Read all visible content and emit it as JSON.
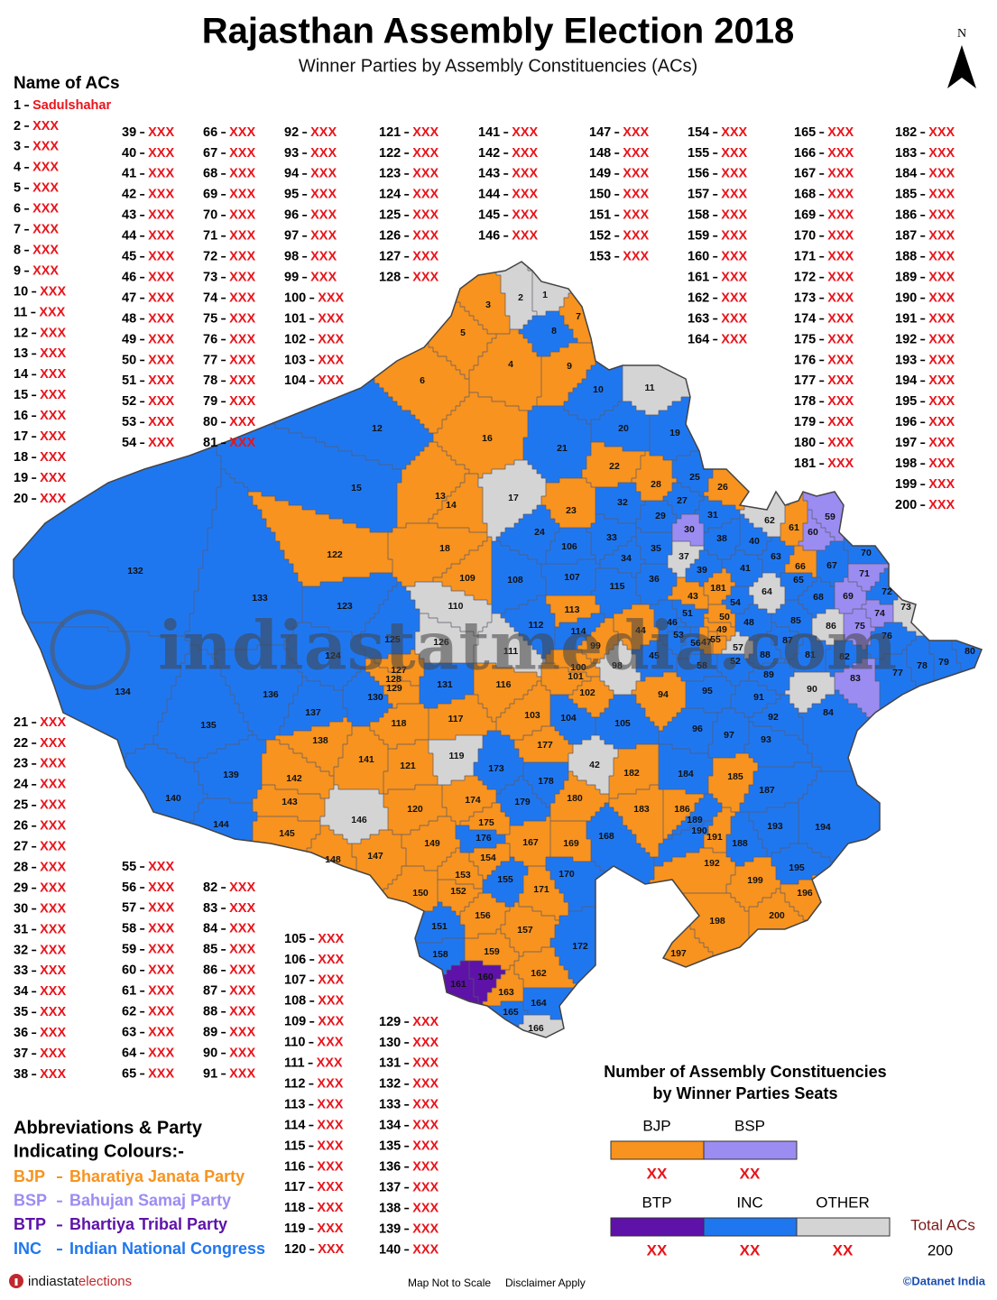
{
  "header": {
    "title": "Rajasthan Assembly Election 2018",
    "subtitle": "Winner Parties by Assembly Constituencies (ACs)",
    "north": "N"
  },
  "ac_list": {
    "heading": "Name of ACs",
    "numbers": [
      1,
      2,
      3,
      4,
      5,
      6,
      7,
      8,
      9,
      10,
      11,
      12,
      13,
      14,
      15,
      16,
      17,
      18,
      19,
      20,
      21,
      22,
      23,
      24,
      25,
      26,
      27,
      28,
      29,
      30,
      31,
      32,
      33,
      34,
      35,
      36,
      37,
      38,
      39,
      40,
      41,
      42,
      43,
      44,
      45,
      46,
      47,
      48,
      49,
      50,
      51,
      52,
      53,
      54,
      55,
      56,
      57,
      58,
      59,
      60,
      61,
      62,
      63,
      64,
      65,
      66,
      67,
      68,
      69,
      70,
      71,
      72,
      73,
      74,
      75,
      76,
      77,
      78,
      79,
      80,
      81,
      82,
      83,
      84,
      85,
      86,
      87,
      88,
      89,
      90,
      91,
      92,
      93,
      94,
      95,
      96,
      97,
      98,
      99,
      100,
      101,
      102,
      103,
      104,
      105,
      106,
      107,
      108,
      109,
      110,
      111,
      112,
      113,
      114,
      115,
      116,
      117,
      118,
      119,
      120,
      121,
      122,
      123,
      124,
      125,
      126,
      127,
      128,
      129,
      130,
      131,
      132,
      133,
      134,
      135,
      136,
      137,
      138,
      139,
      140,
      141,
      142,
      143,
      144,
      145,
      146,
      147,
      148,
      149,
      150,
      151,
      152,
      153,
      154,
      155,
      156,
      157,
      158,
      159,
      160,
      161,
      162,
      163,
      164,
      165,
      166,
      167,
      168,
      169,
      170,
      171,
      172,
      173,
      174,
      175,
      176,
      177,
      178,
      179,
      180,
      181,
      182,
      183,
      184,
      185,
      186,
      187,
      188,
      189,
      190,
      191,
      192,
      193,
      194,
      195,
      196,
      197,
      198,
      199,
      200
    ],
    "names": [
      "Sadulshahar",
      "XXX",
      "XXX",
      "XXX",
      "XXX",
      "XXX",
      "XXX",
      "XXX",
      "XXX",
      "XXX",
      "XXX",
      "XXX",
      "XXX",
      "XXX",
      "XXX",
      "XXX",
      "XXX",
      "XXX",
      "XXX",
      "XXX",
      "XXX",
      "XXX",
      "XXX",
      "XXX",
      "XXX",
      "XXX",
      "XXX",
      "XXX",
      "XXX",
      "XXX",
      "XXX",
      "XXX",
      "XXX",
      "XXX",
      "XXX",
      "XXX",
      "XXX",
      "XXX",
      "XXX",
      "XXX",
      "XXX",
      "XXX",
      "XXX",
      "XXX",
      "XXX",
      "XXX",
      "XXX",
      "XXX",
      "XXX",
      "XXX",
      "XXX",
      "XXX",
      "XXX",
      "XXX",
      "XXX",
      "XXX",
      "XXX",
      "XXX",
      "XXX",
      "XXX",
      "XXX",
      "XXX",
      "XXX",
      "XXX",
      "XXX",
      "XXX",
      "XXX",
      "XXX",
      "XXX",
      "XXX",
      "XXX",
      "XXX",
      "XXX",
      "XXX",
      "XXX",
      "XXX",
      "XXX",
      "XXX",
      "XXX",
      "XXX",
      "XXX",
      "XXX",
      "XXX",
      "XXX",
      "XXX",
      "XXX",
      "XXX",
      "XXX",
      "XXX",
      "XXX",
      "XXX",
      "XXX",
      "XXX",
      "XXX",
      "XXX",
      "XXX",
      "XXX",
      "XXX",
      "XXX",
      "XXX",
      "XXX",
      "XXX",
      "XXX",
      "XXX",
      "XXX",
      "XXX",
      "XXX",
      "XXX",
      "XXX",
      "XXX",
      "XXX",
      "XXX",
      "XXX",
      "XXX",
      "XXX",
      "XXX",
      "XXX",
      "XXX",
      "XXX",
      "XXX",
      "XXX",
      "XXX",
      "XXX",
      "XXX",
      "XXX",
      "XXX",
      "XXX",
      "XXX",
      "XXX",
      "XXX",
      "XXX",
      "XXX",
      "XXX",
      "XXX",
      "XXX",
      "XXX",
      "XXX",
      "XXX",
      "XXX",
      "XXX",
      "XXX",
      "XXX",
      "XXX",
      "XXX",
      "XXX",
      "XXX",
      "XXX",
      "XXX",
      "XXX",
      "XXX",
      "XXX",
      "XXX",
      "XXX",
      "XXX",
      "XXX",
      "XXX",
      "XXX",
      "XXX",
      "XXX",
      "XXX",
      "XXX",
      "XXX",
      "XXX",
      "XXX",
      "XXX",
      "XXX",
      "XXX",
      "XXX",
      "XXX",
      "XXX",
      "XXX",
      "XXX",
      "XXX",
      "XXX",
      "XXX",
      "XXX",
      "XXX",
      "XXX",
      "XXX",
      "XXX",
      "XXX",
      "XXX",
      "XXX",
      "XXX",
      "XXX",
      "XXX",
      "XXX",
      "XXX",
      "XXX",
      "XXX",
      "XXX",
      "XXX",
      "XXX",
      "XXX",
      "XXX",
      "XXX",
      "XXX",
      "XXX",
      "XXX",
      "XXX"
    ],
    "winners": [
      "OTHER",
      "OTHER",
      "BJP",
      "BJP",
      "BJP",
      "BJP",
      "BJP",
      "INC",
      "BJP",
      "INC",
      "OTHER",
      "INC",
      "BJP",
      "BJP",
      "INC",
      "BJP",
      "OTHER",
      "BJP",
      "INC",
      "INC",
      "INC",
      "BJP",
      "BJP",
      "INC",
      "INC",
      "BJP",
      "INC",
      "BJP",
      "INC",
      "BSP",
      "INC",
      "INC",
      "INC",
      "INC",
      "INC",
      "INC",
      "OTHER",
      "INC",
      "INC",
      "INC",
      "INC",
      "OTHER",
      "BJP",
      "BJP",
      "INC",
      "INC",
      "BJP",
      "INC",
      "BJP",
      "BJP",
      "INC",
      "INC",
      "INC",
      "INC",
      "BJP",
      "INC",
      "OTHER",
      "INC",
      "BSP",
      "BSP",
      "BJP",
      "OTHER",
      "INC",
      "OTHER",
      "INC",
      "BJP",
      "INC",
      "INC",
      "BSP",
      "INC",
      "BSP",
      "INC",
      "OTHER",
      "BSP",
      "BSP",
      "INC",
      "INC",
      "INC",
      "INC",
      "INC",
      "INC",
      "INC",
      "BSP",
      "INC",
      "INC",
      "OTHER",
      "INC",
      "INC",
      "INC",
      "OTHER",
      "INC",
      "INC",
      "INC",
      "BJP",
      "INC",
      "INC",
      "INC",
      "OTHER",
      "BJP",
      "BJP",
      "BJP",
      "BJP",
      "BJP",
      "INC",
      "INC",
      "INC",
      "INC",
      "INC",
      "BJP",
      "OTHER",
      "OTHER",
      "INC",
      "BJP",
      "INC",
      "INC",
      "BJP",
      "BJP",
      "BJP",
      "OTHER",
      "BJP",
      "BJP",
      "BJP",
      "INC",
      "INC",
      "INC",
      "OTHER",
      "BJP",
      "BJP",
      "BJP",
      "INC",
      "INC",
      "INC",
      "INC",
      "INC",
      "INC",
      "INC",
      "INC",
      "BJP",
      "INC",
      "INC",
      "BJP",
      "BJP",
      "BJP",
      "INC",
      "BJP",
      "OTHER",
      "BJP",
      "BJP",
      "BJP",
      "BJP",
      "INC",
      "BJP",
      "BJP",
      "BJP",
      "INC",
      "BJP",
      "BJP",
      "INC",
      "BJP",
      "BTP",
      "BTP",
      "BJP",
      "BJP",
      "INC",
      "INC",
      "OTHER",
      "BJP",
      "INC",
      "BJP",
      "INC",
      "BJP",
      "INC",
      "INC",
      "BJP",
      "BJP",
      "INC",
      "BJP",
      "INC",
      "INC",
      "BJP",
      "BJP",
      "BJP",
      "BJP",
      "INC",
      "BJP",
      "BJP",
      "INC",
      "INC",
      "INC",
      "INC",
      "BJP",
      "BJP",
      "INC",
      "INC",
      "INC",
      "BJP",
      "BJP",
      "BJP",
      "BJP",
      "BJP"
    ]
  },
  "abbreviations": {
    "heading": [
      "Abbreviations & Party",
      "Indicating Colours:-"
    ]
  },
  "parties": [
    {
      "abbr": "BJP",
      "full_name": "Bharatiya Janata Party",
      "color": "#f7931e",
      "seats": "XX"
    },
    {
      "abbr": "BSP",
      "full_name": "Bahujan Samaj Party",
      "color": "#9b8cf2",
      "seats": "XX"
    },
    {
      "abbr": "BTP",
      "full_name": "Bhartiya Tribal Party",
      "color": "#5e12a8",
      "seats": "XX"
    },
    {
      "abbr": "INC",
      "full_name": "Indian National Congress",
      "color": "#1f77f0",
      "seats": "XX"
    },
    {
      "abbr": "OTHER",
      "color": "#d4d4d4",
      "seats": "XX"
    }
  ],
  "legend": {
    "title": [
      "Number of Assembly Constituencies",
      "by Winner Parties Seats"
    ],
    "total_label": "Total ACs",
    "total": 200
  },
  "watermark": "indiastatmedia.com",
  "footer": {
    "brand": "indiastat",
    "brand_suffix": "elections",
    "notes": [
      "Map Not to Scale",
      "Disclaimer Apply"
    ],
    "copyright": "©Datanet India"
  }
}
